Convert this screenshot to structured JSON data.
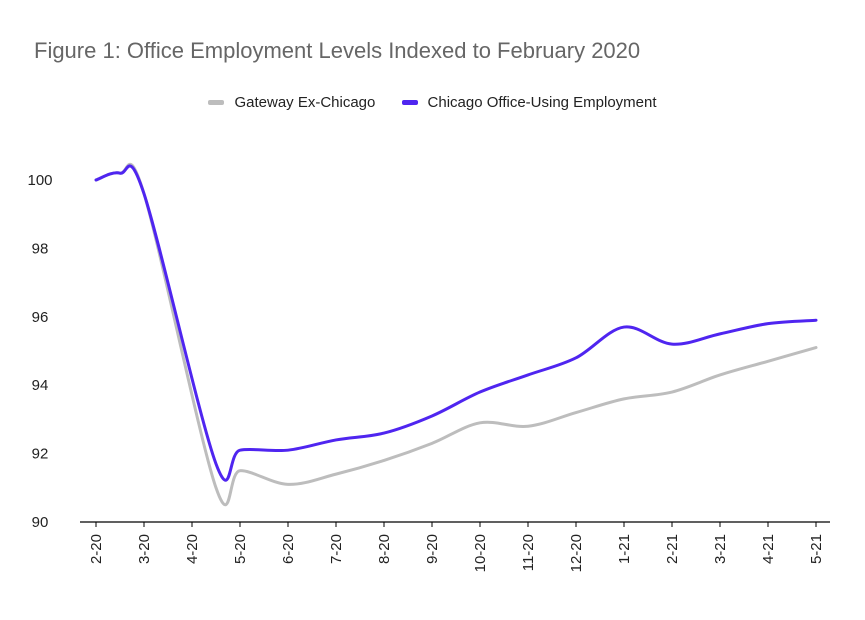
{
  "title": "Figure 1: Office Employment Levels Indexed to February 2020",
  "colors": {
    "background": "#ffffff",
    "axis": "#000000",
    "gateway": "#bdbdbd",
    "chicago": "#4f25f0",
    "title": "#666666"
  },
  "chart_data": {
    "type": "line",
    "title": "Figure 1: Office Employment Levels Indexed to February 2020",
    "xlabel": "",
    "ylabel": "",
    "categories": [
      "2-20",
      "3-20",
      "4-20",
      "5-20",
      "6-20",
      "7-20",
      "8-20",
      "9-20",
      "10-20",
      "11-20",
      "12-20",
      "1-21",
      "2-21",
      "3-21",
      "4-21",
      "5-21"
    ],
    "ylim": [
      90,
      100
    ],
    "yticks": [
      90,
      92,
      94,
      96,
      98,
      100
    ],
    "grid": false,
    "legend_position": "top-center",
    "series": [
      {
        "name": "Gateway Ex-Chicago",
        "color": "#bdbdbd",
        "x": [
          "2-20",
          "2-20 (mid)",
          "3-20",
          "4-20 (mid)",
          "5-20",
          "6-20",
          "7-20",
          "8-20",
          "9-20",
          "10-20",
          "11-20",
          "12-20",
          "1-21",
          "2-21",
          "3-21",
          "4-21",
          "5-21"
        ],
        "values": [
          100.0,
          100.2,
          99.6,
          91.0,
          91.5,
          91.1,
          91.4,
          91.8,
          92.3,
          92.9,
          92.8,
          93.2,
          93.6,
          93.8,
          94.3,
          94.7,
          95.1
        ]
      },
      {
        "name": "Chicago Office-Using Employment",
        "color": "#4f25f0",
        "x": [
          "2-20",
          "2-20 (mid)",
          "3-20",
          "4-20 (mid)",
          "5-20",
          "6-20",
          "7-20",
          "8-20",
          "9-20",
          "10-20",
          "11-20",
          "12-20",
          "1-21",
          "2-21",
          "3-21",
          "4-21",
          "5-21"
        ],
        "values": [
          100.0,
          100.2,
          99.6,
          91.7,
          92.1,
          92.1,
          92.4,
          92.6,
          93.1,
          93.8,
          94.3,
          94.8,
          95.7,
          95.2,
          95.5,
          95.8,
          95.9
        ]
      }
    ]
  }
}
